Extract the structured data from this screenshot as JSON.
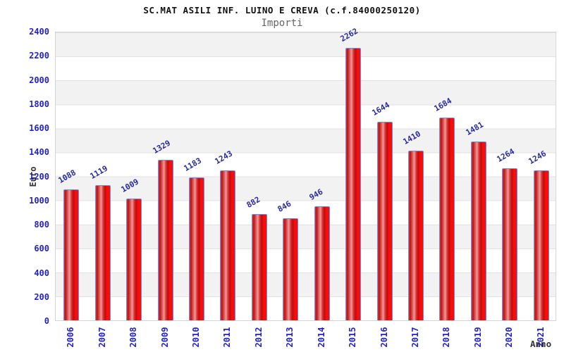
{
  "header": {
    "title": "SC.MAT ASILI INF. LUINO E CREVA (c.f.84000250120)",
    "subtitle": "Importi"
  },
  "chart_data": {
    "type": "bar",
    "title": "SC.MAT ASILI INF. LUINO E CREVA (c.f.84000250120)",
    "subtitle": "Importi",
    "xlabel": "Anno",
    "ylabel": "Euro",
    "categories": [
      "2006",
      "2007",
      "2008",
      "2009",
      "2010",
      "2011",
      "2012",
      "2013",
      "2014",
      "2015",
      "2016",
      "2017",
      "2018",
      "2019",
      "2020",
      "2021"
    ],
    "values": [
      1088,
      1119,
      1009,
      1329,
      1183,
      1243,
      882,
      846,
      946,
      2262,
      1644,
      1410,
      1684,
      1481,
      1264,
      1246
    ],
    "ylim": [
      0,
      2400
    ],
    "ytick_step": 200,
    "yticks": [
      0,
      200,
      400,
      600,
      800,
      1000,
      1200,
      1400,
      1600,
      1800,
      2000,
      2200,
      2400
    ],
    "grid": "horizontal",
    "legend": "none",
    "colors": {
      "bar_fill": "#e01010",
      "bar_border": "#5f94ef",
      "tick_label": "#2222cc",
      "value_label": "#2a2aa4",
      "band_gray": "#f2f2f2",
      "band_white": "#ffffff",
      "gridline": "#e2e2e2",
      "title_text": "#111111",
      "subtitle_text": "#666666",
      "axis_title_text": "#333333"
    }
  }
}
